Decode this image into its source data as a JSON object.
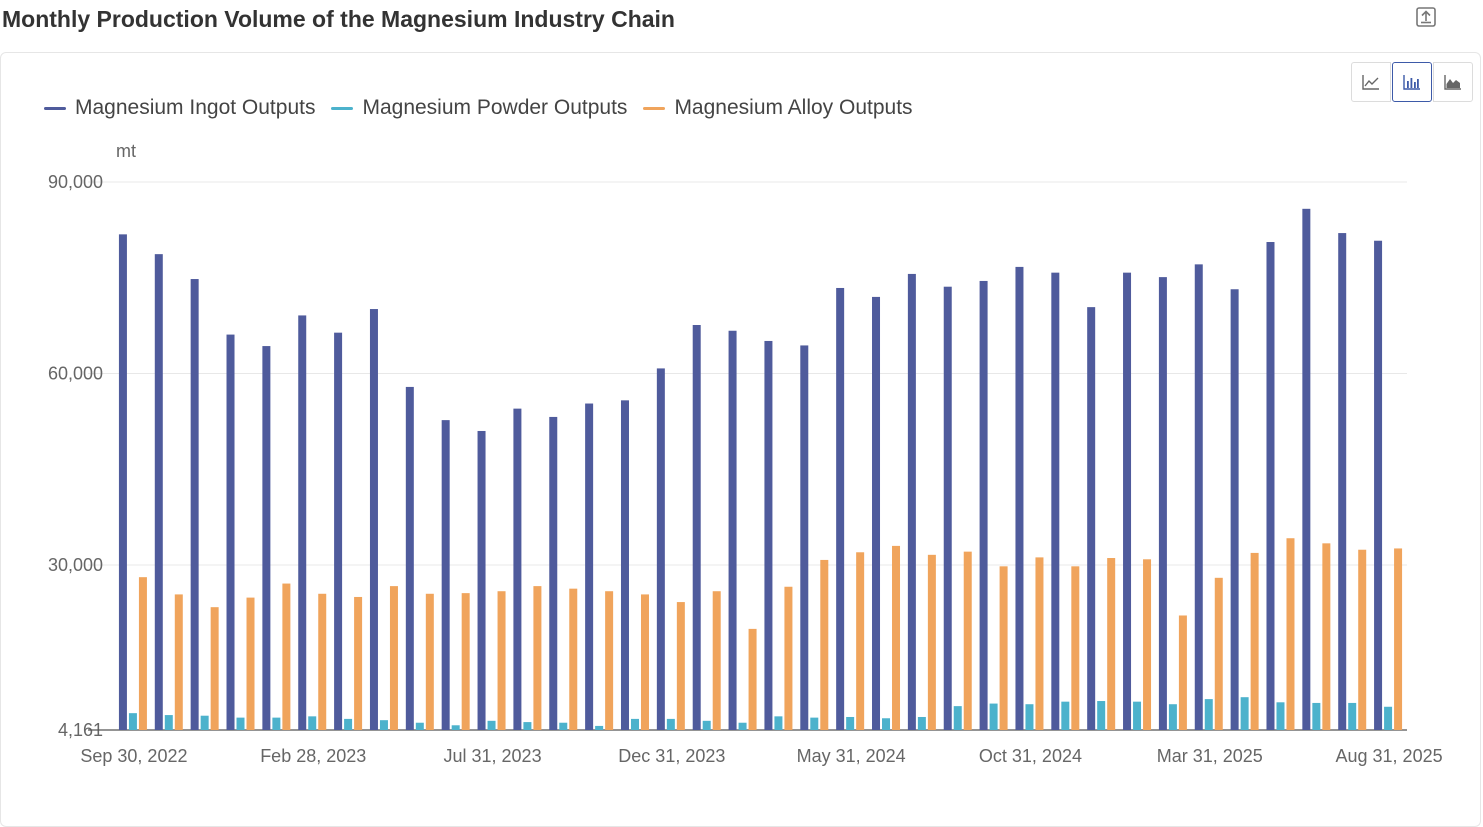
{
  "title": "Monthly Production Volume of the Magnesium Industry Chain",
  "toolbar": {
    "export_icon": "export-icon",
    "chart_type_buttons": [
      {
        "icon": "line-chart-icon",
        "active": false
      },
      {
        "icon": "bar-chart-icon",
        "active": true
      },
      {
        "icon": "area-chart-icon",
        "active": false
      }
    ]
  },
  "colors": {
    "ingot": "#4f5b9c",
    "powder": "#4cb2cc",
    "alloy": "#f0a45c",
    "grid": "#e8e8e8",
    "axis": "#666666"
  },
  "chart_data": {
    "type": "bar",
    "unit": "mt",
    "ylim": [
      4161,
      90000
    ],
    "y_ticks": [
      "4,161",
      "30,000",
      "60,000",
      "90,000"
    ],
    "x_tick_labels": [
      "Sep 30, 2022",
      "Feb 28, 2023",
      "Jul 31, 2023",
      "Dec 31, 2023",
      "May 31, 2024",
      "Oct 31, 2024",
      "Mar 31, 2025",
      "Aug 31, 2025"
    ],
    "x_tick_indices": [
      0,
      5,
      10,
      15,
      20,
      25,
      30,
      35
    ],
    "legend_position": "top-left",
    "grid": true,
    "categories": [
      "Sep 2022",
      "Oct 2022",
      "Nov 2022",
      "Dec 2022",
      "Jan 2023",
      "Feb 2023",
      "Mar 2023",
      "Apr 2023",
      "May 2023",
      "Jun 2023",
      "Jul 2023",
      "Aug 2023",
      "Sep 2023",
      "Oct 2023",
      "Nov 2023",
      "Dec 2023",
      "Jan 2024",
      "Feb 2024",
      "Mar 2024",
      "Apr 2024",
      "May 2024",
      "Jun 2024",
      "Jul 2024",
      "Aug 2024",
      "Sep 2024",
      "Oct 2024",
      "Nov 2024",
      "Dec 2024",
      "Jan 2025",
      "Feb 2025",
      "Mar 2025",
      "Apr 2025",
      "May 2025",
      "Jun 2025",
      "Jul 2025",
      "Aug 2025"
    ],
    "series": [
      {
        "name": "Magnesium Ingot Outputs",
        "color_key": "ingot",
        "values": [
          81800,
          78700,
          74800,
          66100,
          64300,
          69100,
          66400,
          70100,
          57900,
          52700,
          51000,
          54500,
          53200,
          55300,
          55800,
          60800,
          67600,
          66700,
          65100,
          64400,
          73400,
          72000,
          75600,
          73600,
          74500,
          76700,
          75800,
          70400,
          75800,
          75100,
          77100,
          73200,
          80600,
          85800,
          82000,
          80800
        ]
      },
      {
        "name": "Magnesium Powder Outputs",
        "color_key": "powder",
        "values": [
          6800,
          6500,
          6400,
          6100,
          6100,
          6300,
          5900,
          5700,
          5300,
          4900,
          5600,
          5400,
          5300,
          4800,
          5900,
          5900,
          5600,
          5300,
          6300,
          6100,
          6200,
          6000,
          6200,
          7900,
          8300,
          8200,
          8600,
          8700,
          8600,
          8200,
          9000,
          9300,
          8500,
          8400,
          8400,
          7800
        ]
      },
      {
        "name": "Magnesium Alloy Outputs",
        "color_key": "alloy",
        "values": [
          28100,
          25400,
          23400,
          24900,
          27100,
          25500,
          25000,
          26700,
          25500,
          25600,
          25900,
          26700,
          26300,
          25900,
          25400,
          24200,
          25900,
          20000,
          26600,
          30800,
          32000,
          33000,
          31600,
          32100,
          29800,
          31200,
          29800,
          31100,
          30900,
          22100,
          28000,
          31900,
          34200,
          33400,
          32400,
          32600
        ]
      }
    ]
  }
}
